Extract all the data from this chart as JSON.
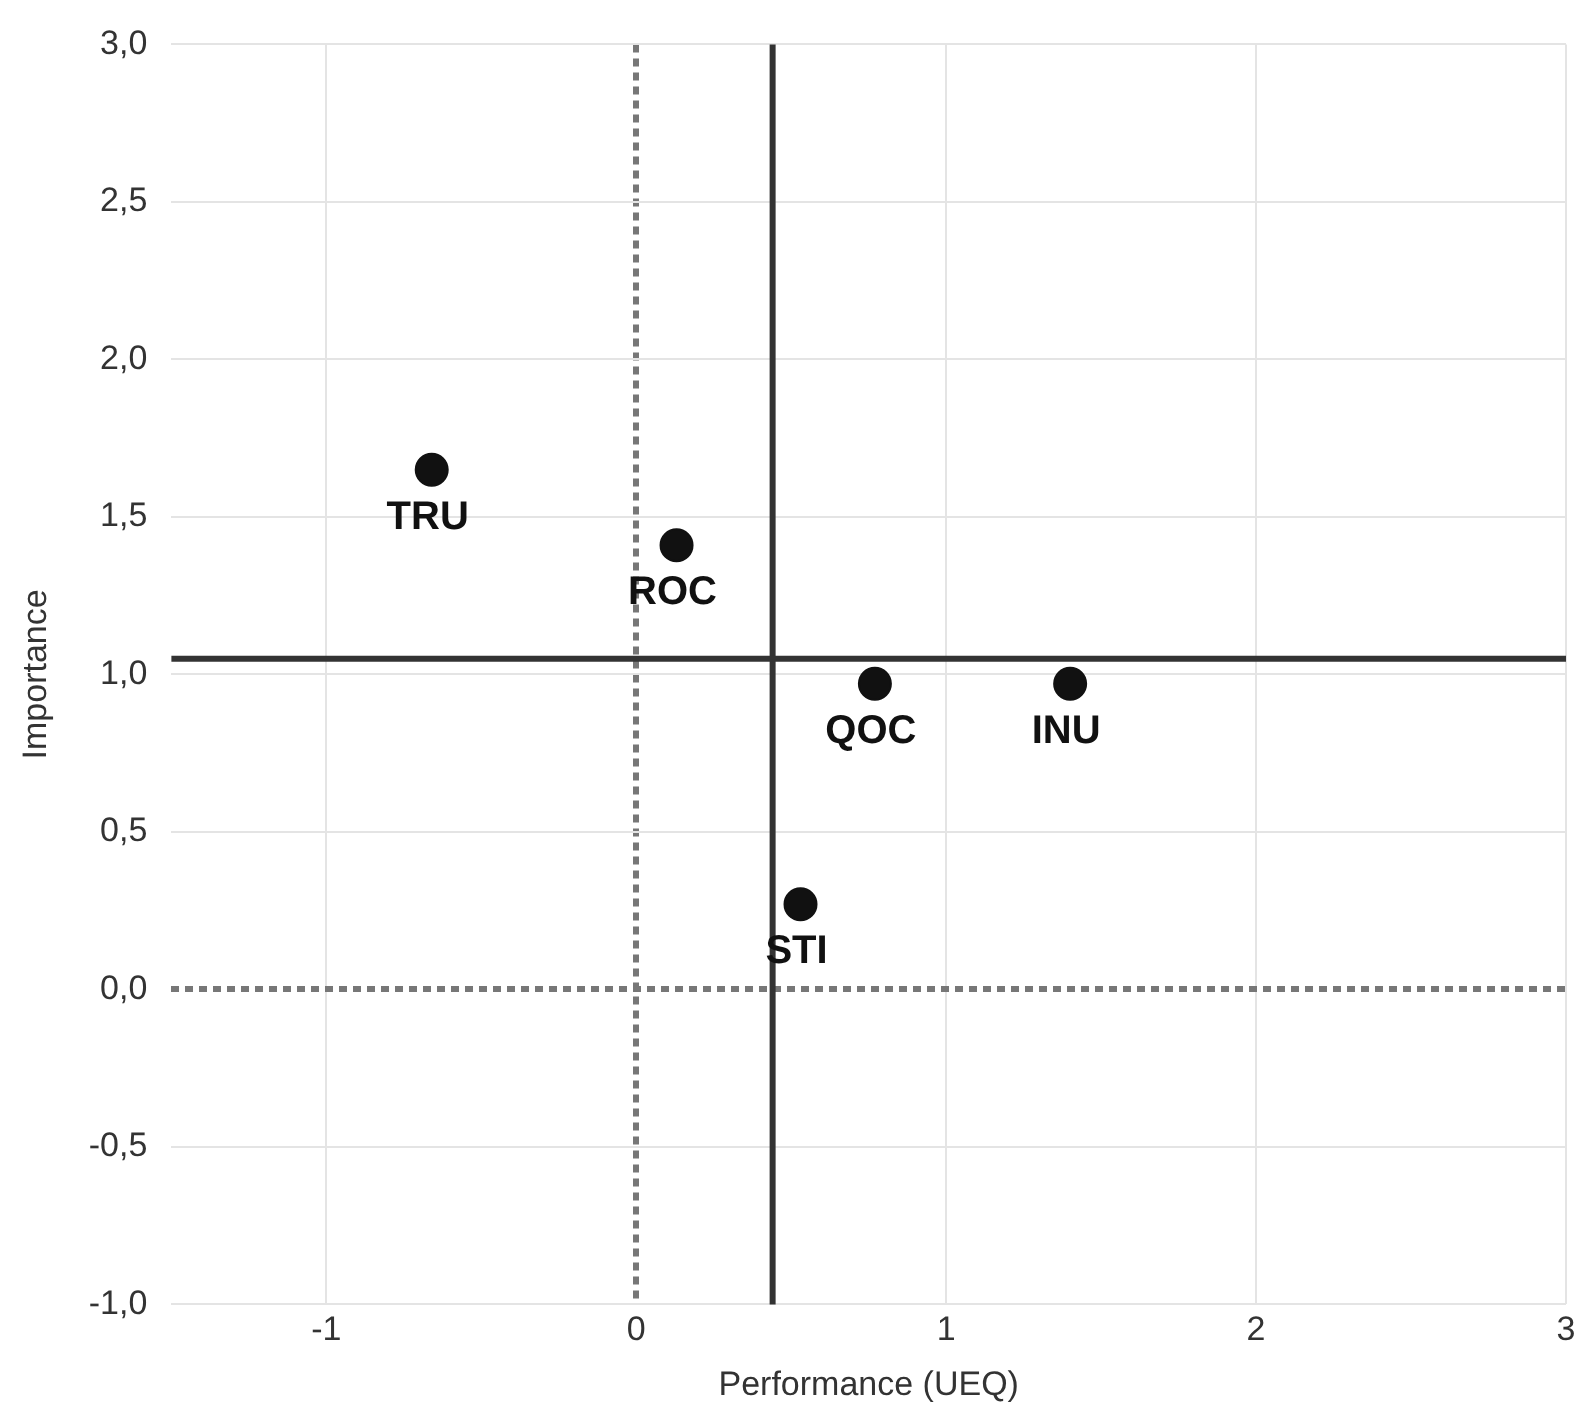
{
  "chart_data": {
    "type": "scatter",
    "xlabel": "Performance (UEQ)",
    "ylabel": "Importance",
    "marker": "circle",
    "grid": true,
    "legend": false,
    "xlim": [
      -1.5,
      3
    ],
    "xticks": [
      -1,
      0,
      1,
      2,
      3
    ],
    "ylim": [
      -1,
      3
    ],
    "yticks": [
      {
        "value": -1,
        "label": "-1,0"
      },
      {
        "value": -0.5,
        "label": "-0,5"
      },
      {
        "value": 0,
        "label": "0,0"
      },
      {
        "value": 0.5,
        "label": "0,5"
      },
      {
        "value": 1,
        "label": "1,0"
      },
      {
        "value": 1.5,
        "label": "1,5"
      },
      {
        "value": 2,
        "label": "2,0"
      },
      {
        "value": 2.5,
        "label": "2,5"
      },
      {
        "value": 3,
        "label": "3,0"
      }
    ],
    "series": [
      {
        "name": "TRU",
        "color": "#111111",
        "x": [
          -0.66
        ],
        "values": [
          1.65
        ]
      },
      {
        "name": "ROC",
        "color": "#111111",
        "x": [
          0.13
        ],
        "values": [
          1.41
        ]
      },
      {
        "name": "QOC",
        "color": "#111111",
        "x": [
          0.77
        ],
        "values": [
          0.97
        ]
      },
      {
        "name": "INU",
        "color": "#111111",
        "x": [
          1.4
        ],
        "values": [
          0.97
        ]
      },
      {
        "name": "STI",
        "color": "#111111",
        "x": [
          0.53
        ],
        "values": [
          0.27
        ]
      }
    ],
    "ref_lines": [
      {
        "axis": "x",
        "value": 0.44,
        "color": "#333333",
        "line_style": "solid"
      },
      {
        "axis": "y",
        "value": 1.05,
        "color": "#333333",
        "line_style": "solid"
      }
    ]
  }
}
